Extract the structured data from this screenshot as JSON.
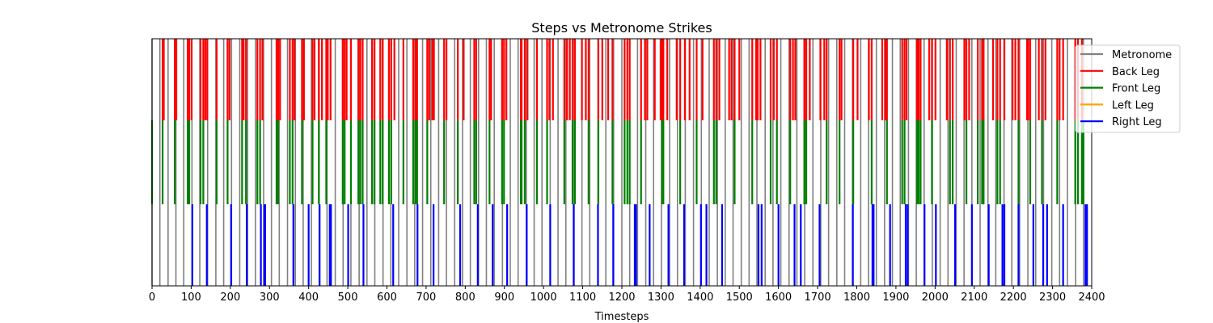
{
  "colors": {
    "metronome": "#808080",
    "back_leg": "#ff0000",
    "front_leg": "#008000",
    "left_leg": "#ffa500",
    "right_leg": "#0000ff"
  },
  "chart_data": {
    "type": "event-raster",
    "title": "Steps vs Metronome Strikes",
    "xlabel": "Timesteps",
    "ylabel": "",
    "xlim": [
      0,
      2400
    ],
    "xticks": [
      0,
      100,
      200,
      300,
      400,
      500,
      600,
      700,
      800,
      900,
      1000,
      1100,
      1200,
      1300,
      1400,
      1500,
      1600,
      1700,
      1800,
      1900,
      2000,
      2100,
      2200,
      2300,
      2400
    ],
    "xtick_labels": [
      "0",
      "100",
      "200",
      "300",
      "400",
      "500",
      "600",
      "700",
      "800",
      "900",
      "1000",
      "1100",
      "1200",
      "1300",
      "1400",
      "1500",
      "1600",
      "1700",
      "1800",
      "1900",
      "2000",
      "2100",
      "2200",
      "2300",
      "2400"
    ],
    "grid": false,
    "legend_position": "upper right",
    "series": [
      {
        "name": "Metronome",
        "color": "#808080",
        "y_range": [
          0,
          1
        ],
        "x": [
          0,
          20,
          41,
          61,
          81,
          102,
          122,
          142,
          163,
          183,
          203,
          224,
          244,
          264,
          285,
          305,
          325,
          346,
          366,
          386,
          407,
          427,
          447,
          468,
          488,
          508,
          529,
          549,
          569,
          590,
          610,
          630,
          651,
          671,
          691,
          712,
          732,
          752,
          773,
          793,
          813,
          834,
          854,
          874,
          895,
          915,
          935,
          956,
          976,
          996,
          1017,
          1037,
          1057,
          1078,
          1098,
          1118,
          1139,
          1159,
          1179,
          1200,
          1220,
          1240,
          1261,
          1281,
          1301,
          1322,
          1342,
          1362,
          1383,
          1403,
          1423,
          1444,
          1464,
          1484,
          1505,
          1525,
          1545,
          1566,
          1586,
          1606,
          1627,
          1647,
          1667,
          1688,
          1708,
          1728,
          1749,
          1769,
          1789,
          1810,
          1830,
          1850,
          1871,
          1891,
          1911,
          1932,
          1952,
          1972,
          1993,
          2013,
          2033,
          2054,
          2074,
          2094,
          2115,
          2135,
          2155,
          2176,
          2196,
          2216,
          2237,
          2257,
          2277,
          2298,
          2318,
          2338,
          2359,
          2379
        ]
      },
      {
        "name": "Back Leg",
        "color": "#ff0000",
        "y_range": [
          0.67,
          1
        ],
        "x": [
          27,
          30,
          58,
          62,
          91,
          95,
          101,
          124,
          131,
          136,
          141,
          165,
          193,
          198,
          230,
          234,
          240,
          269,
          276,
          282,
          318,
          322,
          327,
          352,
          359,
          364,
          383,
          388,
          410,
          415,
          426,
          434,
          445,
          449,
          456,
          487,
          492,
          497,
          508,
          527,
          532,
          538,
          562,
          568,
          583,
          589,
          605,
          611,
          619,
          642,
          667,
          673,
          677,
          703,
          708,
          716,
          720,
          746,
          752,
          781,
          796,
          823,
          828,
          862,
          866,
          894,
          899,
          905,
          942,
          944,
          952,
          959,
          983,
          1009,
          1015,
          1024,
          1053,
          1060,
          1067,
          1074,
          1080,
          1098,
          1108,
          1115,
          1140,
          1150,
          1165,
          1176,
          1207,
          1214,
          1220,
          1249,
          1259,
          1265,
          1284,
          1299,
          1303,
          1306,
          1316,
          1340,
          1349,
          1361,
          1373,
          1391,
          1406,
          1435,
          1441,
          1449,
          1474,
          1480,
          1488,
          1500,
          1533,
          1543,
          1547,
          1554,
          1580,
          1588,
          1596,
          1630,
          1637,
          1643,
          1666,
          1671,
          1680,
          1707,
          1717,
          1723,
          1756,
          1761,
          1791,
          1802,
          1831,
          1838,
          1865,
          1873,
          1877,
          1916,
          1922,
          1927,
          1954,
          1958,
          1963,
          1985,
          1992,
          2001,
          2030,
          2038,
          2045,
          2075,
          2080,
          2087,
          2109,
          2120,
          2124,
          2148,
          2159,
          2166,
          2177,
          2198,
          2205,
          2213,
          2235,
          2238,
          2243,
          2265,
          2273,
          2282,
          2312,
          2318,
          2327,
          2358,
          2365,
          2375
        ]
      },
      {
        "name": "Front Leg",
        "color": "#008000",
        "y_range": [
          0.33,
          0.67
        ],
        "x": [
          0,
          27,
          58,
          91,
          95,
          124,
          131,
          165,
          193,
          230,
          240,
          269,
          276,
          318,
          322,
          352,
          359,
          383,
          410,
          426,
          445,
          487,
          492,
          508,
          527,
          532,
          538,
          562,
          568,
          583,
          589,
          605,
          611,
          642,
          667,
          673,
          677,
          703,
          746,
          781,
          823,
          828,
          862,
          894,
          899,
          942,
          944,
          952,
          983,
          1009,
          1053,
          1074,
          1080,
          1115,
          1140,
          1176,
          1207,
          1214,
          1220,
          1249,
          1303,
          1306,
          1349,
          1391,
          1435,
          1441,
          1488,
          1533,
          1580,
          1596,
          1630,
          1666,
          1671,
          1723,
          1756,
          1791,
          1838,
          1877,
          1916,
          1922,
          1954,
          1958,
          1963,
          1992,
          2038,
          2045,
          2080,
          2109,
          2120,
          2124,
          2159,
          2166,
          2213,
          2243,
          2273,
          2312,
          2358,
          2365,
          2375,
          2379
        ]
      },
      {
        "name": "Left Leg",
        "color": "#ffa500",
        "y_range": [
          0,
          1
        ],
        "x": []
      },
      {
        "name": "Right Leg",
        "color": "#0000ff",
        "y_range": [
          0,
          0.33
        ],
        "x": [
          103,
          140,
          202,
          242,
          278,
          287,
          289,
          361,
          400,
          428,
          454,
          457,
          501,
          540,
          616,
          678,
          719,
          787,
          832,
          870,
          907,
          957,
          1017,
          1077,
          1139,
          1178,
          1233,
          1236,
          1271,
          1319,
          1359,
          1402,
          1416,
          1456,
          1549,
          1557,
          1600,
          1641,
          1657,
          1705,
          1790,
          1840,
          1843,
          1885,
          1925,
          1930,
          1973,
          2002,
          2051,
          2094,
          2137,
          2172,
          2177,
          2213,
          2251,
          2276,
          2286,
          2327,
          2384,
          2388
        ]
      }
    ]
  }
}
